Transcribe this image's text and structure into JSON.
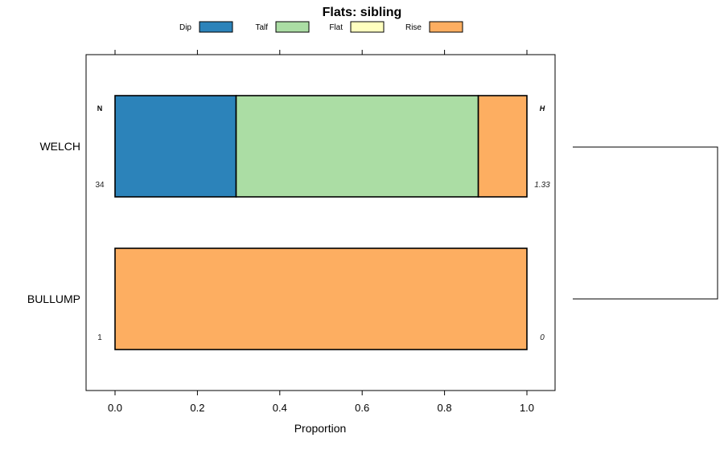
{
  "chart_data": {
    "type": "bar",
    "orientation": "horizontal-stacked",
    "title": "Flats: sibling",
    "xlabel": "Proportion",
    "ylabel": "",
    "xlim": [
      0,
      1
    ],
    "xticks": [
      "0.0",
      "0.2",
      "0.4",
      "0.6",
      "0.8",
      "1.0"
    ],
    "xtick_values": [
      0,
      0.2,
      0.4,
      0.6,
      0.8,
      1.0
    ],
    "legend_position": "top",
    "series": [
      {
        "name": "Dip",
        "color": "#2C83BA"
      },
      {
        "name": "Talf",
        "color": "#ABDDA4"
      },
      {
        "name": "Flat",
        "color": "#FFFFBF"
      },
      {
        "name": "Rise",
        "color": "#FDAE61"
      }
    ],
    "categories": [
      "WELCH",
      "BULLUMP"
    ],
    "values": [
      [
        0.294,
        0.588,
        0,
        0.118
      ],
      [
        0,
        0,
        0,
        1.0
      ]
    ],
    "n_header": "N",
    "h_header": "H",
    "n_values": [
      "34",
      "1"
    ],
    "h_values": [
      "1.33",
      "0"
    ],
    "dendrogram": "WELCH-BULLUMP joined"
  }
}
